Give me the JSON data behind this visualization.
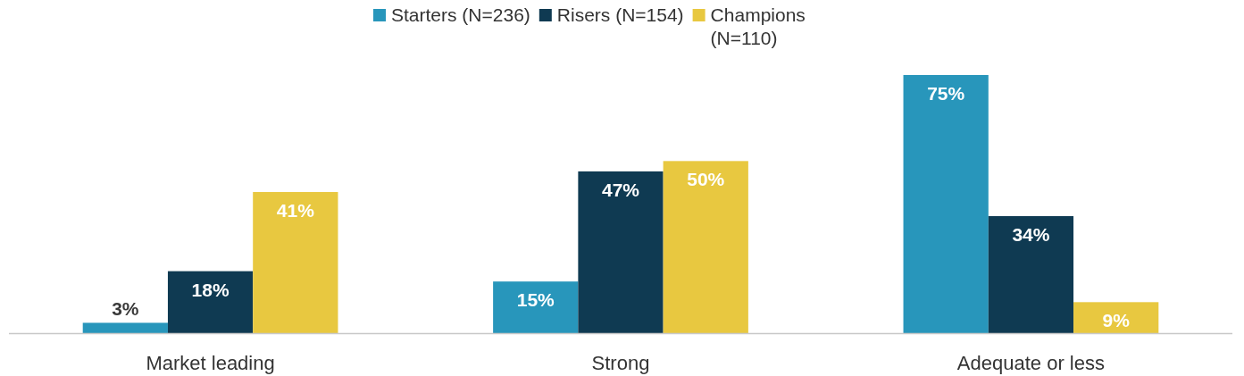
{
  "chart_data": {
    "type": "bar",
    "categories": [
      "Market leading",
      "Strong",
      "Adequate or less"
    ],
    "series": [
      {
        "name": "Starters (N=236)",
        "color": "#2896bb",
        "values": [
          3,
          15,
          75
        ],
        "value_labels": [
          "3%",
          "15%",
          "75%"
        ]
      },
      {
        "name": "Risers (N=154)",
        "color": "#0f3a52",
        "values": [
          18,
          47,
          34
        ],
        "value_labels": [
          "18%",
          "47%",
          "34%"
        ]
      },
      {
        "name": "Champions (N=110)",
        "color": "#e8c840",
        "values": [
          41,
          50,
          9
        ],
        "value_labels": [
          "41%",
          "50%",
          "9%"
        ]
      }
    ],
    "legend": "top"
  }
}
